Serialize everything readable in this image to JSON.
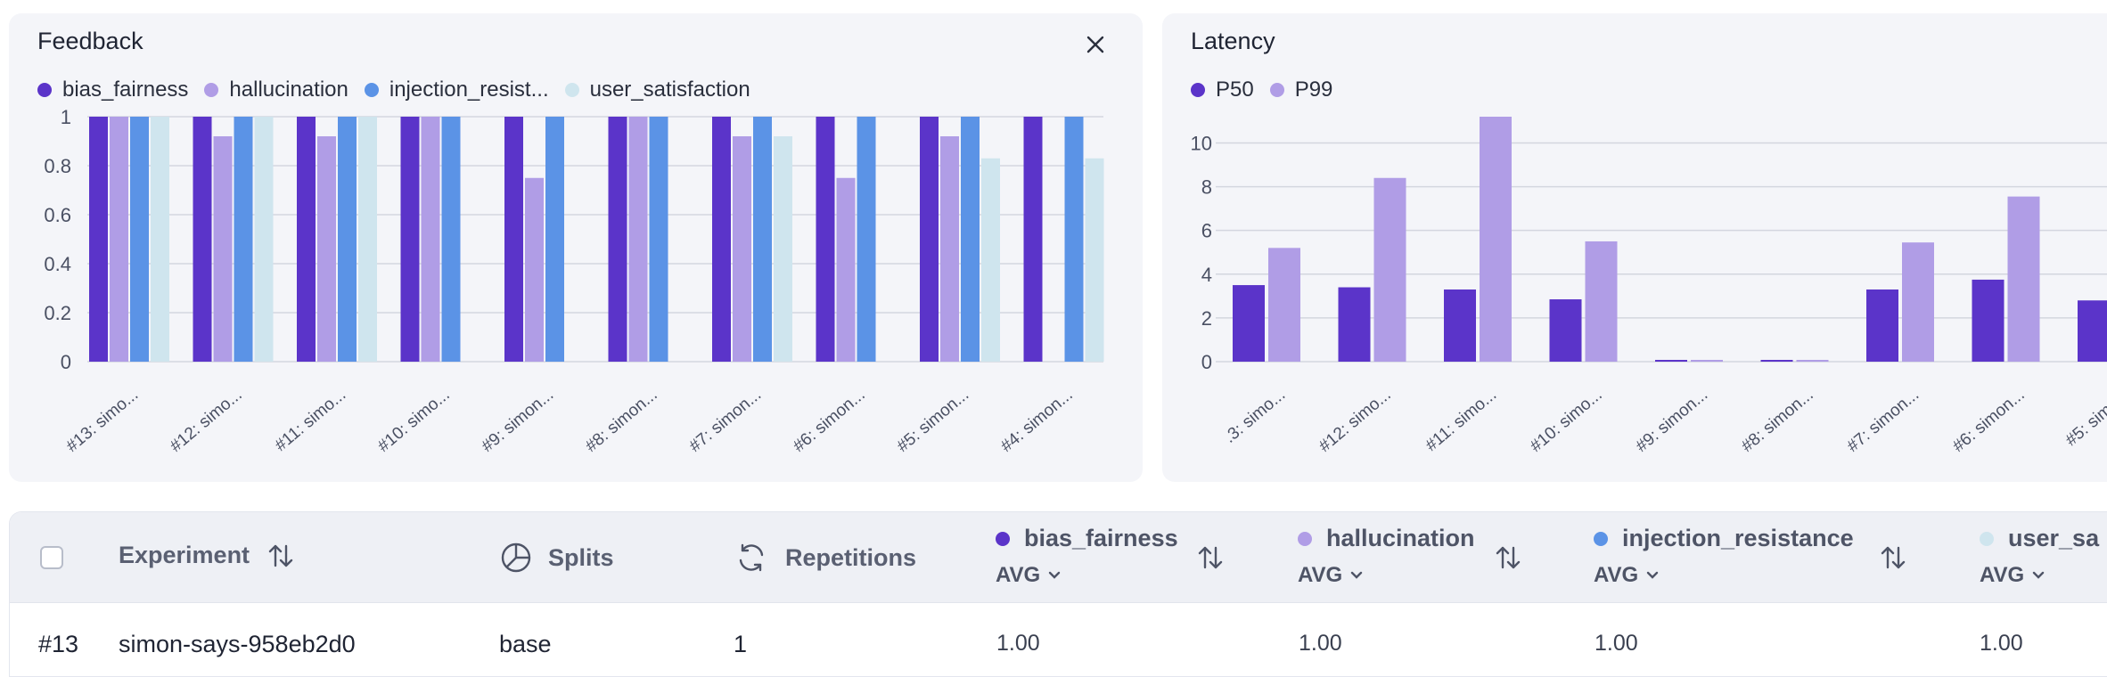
{
  "feedback": {
    "title": "Feedback",
    "legend": [
      {
        "label": "bias_fairness",
        "color": "#5b34c9"
      },
      {
        "label": "hallucination",
        "color": "#b09de6"
      },
      {
        "label": "injection_resist...",
        "color": "#5b93e6"
      },
      {
        "label": "user_satisfaction",
        "color": "#cfe5ee"
      }
    ]
  },
  "latency": {
    "title": "Latency",
    "legend": [
      {
        "label": "P50",
        "color": "#5b34c9"
      },
      {
        "label": "P99",
        "color": "#b09de6"
      }
    ]
  },
  "chart_data": [
    {
      "type": "bar",
      "title": "Feedback",
      "categories": [
        "#13: simo...",
        "#12: simo...",
        "#11: simo...",
        "#10: simo...",
        "#9: simon...",
        "#8: simon...",
        "#7: simon...",
        "#6: simon...",
        "#5: simon...",
        "#4: simon..."
      ],
      "yticks": [
        "0",
        "0.2",
        "0.4",
        "0.6",
        "0.8",
        "1"
      ],
      "ylim": [
        0,
        1
      ],
      "grid": true,
      "legend_position": "top-left",
      "series": [
        {
          "name": "bias_fairness",
          "color": "#5b34c9",
          "values": [
            1,
            1,
            1,
            1,
            1,
            1,
            1,
            1,
            1,
            1
          ]
        },
        {
          "name": "hallucination",
          "color": "#b09de6",
          "values": [
            1,
            0.92,
            0.92,
            1,
            0.75,
            1,
            0.92,
            0.75,
            0.92,
            0
          ]
        },
        {
          "name": "injection_resist...",
          "color": "#5b93e6",
          "values": [
            1,
            1,
            1,
            1,
            1,
            1,
            1,
            1,
            1,
            1
          ]
        },
        {
          "name": "user_satisfaction",
          "color": "#cfe5ee",
          "values": [
            1,
            1,
            1,
            0,
            0,
            0,
            0.92,
            0,
            0.83,
            0.83
          ]
        }
      ]
    },
    {
      "type": "bar",
      "title": "Latency",
      "categories": [
        ".3: simo...",
        "#12: simo...",
        "#11: simo...",
        "#10: simo...",
        "#9: simon...",
        "#8: simon...",
        "#7: simon...",
        "#6: simon...",
        "#5: simo..."
      ],
      "yticks": [
        "0",
        "2",
        "4",
        "6",
        "8",
        "10"
      ],
      "ylim": [
        0,
        11.2
      ],
      "grid": true,
      "legend_position": "top-left",
      "series": [
        {
          "name": "P50",
          "color": "#5b34c9",
          "values": [
            3.5,
            3.4,
            3.3,
            2.85,
            0.05,
            0.05,
            3.3,
            3.75,
            2.8
          ]
        },
        {
          "name": "P99",
          "color": "#b09de6",
          "values": [
            5.2,
            8.4,
            11.2,
            5.5,
            0.05,
            0.05,
            5.45,
            7.55,
            null
          ]
        }
      ]
    }
  ],
  "table": {
    "columns": {
      "experiment": "Experiment",
      "splits": "Splits",
      "repetitions": "Repetitions"
    },
    "metrics": [
      {
        "name": "bias_fairness",
        "agg": "AVG",
        "color": "#5b34c9"
      },
      {
        "name": "hallucination",
        "agg": "AVG",
        "color": "#b09de6"
      },
      {
        "name": "injection_resistance",
        "agg": "AVG",
        "color": "#5b93e6"
      },
      {
        "name": "user_sa",
        "agg": "AVG",
        "color": "#cfe5ee"
      }
    ],
    "rows": [
      {
        "id": "#13",
        "experiment": "simon-says-958eb2d0",
        "split": "base",
        "repetitions": "1",
        "bias_fairness": "1.00",
        "hallucination": "1.00",
        "injection_resistance": "1.00",
        "user_sa": "1.00"
      }
    ]
  }
}
